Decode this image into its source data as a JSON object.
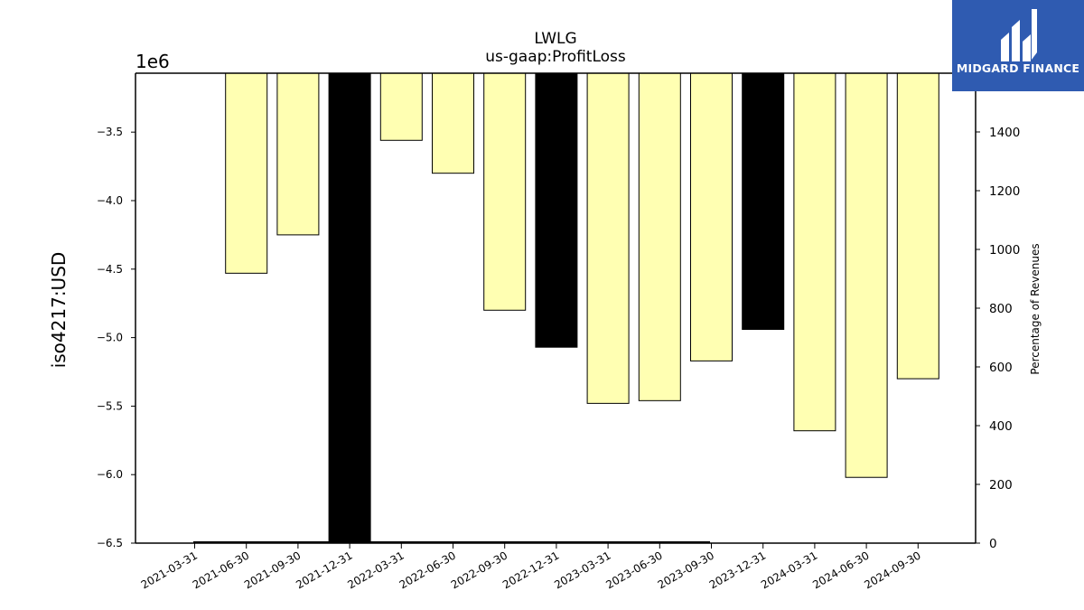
{
  "chart_data": {
    "type": "bar",
    "title": "LWLG",
    "subtitle": "us-gaap:ProfitLoss",
    "ylabel": "iso4217:USD",
    "y2label": "Percentage of Revenues",
    "y_offset_label": "1e6",
    "ylim": [
      -6.5,
      -3.07
    ],
    "y2lim": [
      0,
      1600
    ],
    "yticks": [
      "−3.5",
      "−4.0",
      "−4.5",
      "−5.0",
      "−5.5",
      "−6.0",
      "−6.5"
    ],
    "y2ticks": [
      "0",
      "200",
      "400",
      "600",
      "800",
      "1000",
      "1200",
      "1400"
    ],
    "categories": [
      "2021-03-31",
      "2021-06-30",
      "2021-09-30",
      "2021-12-31",
      "2022-03-31",
      "2022-06-30",
      "2022-09-30",
      "2022-12-31",
      "2023-03-31",
      "2023-06-30",
      "2023-09-30",
      "2023-12-31",
      "2024-03-31",
      "2024-06-30",
      "2024-09-30"
    ],
    "values": [
      null,
      -4.53,
      -4.25,
      -6.5,
      -3.56,
      -3.8,
      -4.8,
      -5.07,
      -5.48,
      -5.46,
      -5.17,
      -4.94,
      -5.68,
      -6.02,
      -5.3
    ],
    "annual": [
      false,
      false,
      false,
      true,
      false,
      false,
      false,
      true,
      false,
      false,
      false,
      true,
      false,
      false,
      false
    ],
    "colors": {
      "quarterly": "#ffffb2",
      "annual": "#000000"
    },
    "grid": false
  },
  "logo": {
    "text": "MIDGARD FINANCE",
    "bg": "#2f5bb1"
  }
}
